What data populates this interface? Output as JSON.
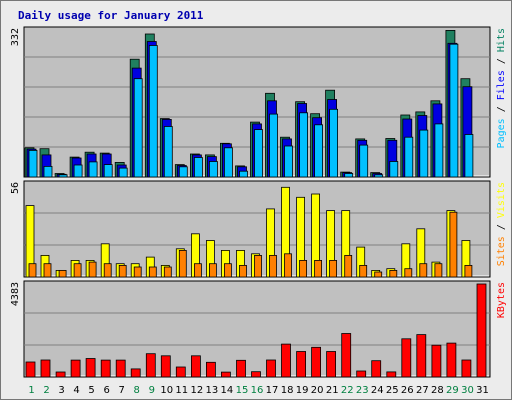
{
  "chart_data": {
    "type": "bar",
    "title": "Daily usage for January 2011",
    "x": [
      "1",
      "2",
      "3",
      "4",
      "5",
      "6",
      "7",
      "8",
      "9",
      "10",
      "11",
      "12",
      "13",
      "14",
      "15",
      "16",
      "17",
      "18",
      "19",
      "20",
      "21",
      "22",
      "23",
      "24",
      "25",
      "26",
      "27",
      "28",
      "29",
      "30",
      "31"
    ],
    "weekend_days": [
      "1",
      "2",
      "8",
      "9",
      "15",
      "16",
      "22",
      "23",
      "29",
      "30"
    ],
    "panels": [
      {
        "ymax_label": "332",
        "ymax": 332,
        "side_label": [
          {
            "text": "Pages",
            "color": "#00c0ff"
          },
          {
            "text": " / ",
            "color": "#000000"
          },
          {
            "text": "Files",
            "color": "#0000ff"
          },
          {
            "text": " / ",
            "color": "#000000"
          },
          {
            "text": "Hits",
            "color": "#008060"
          }
        ],
        "series": [
          {
            "name": "Hits",
            "color": "#208060",
            "values": [
              66,
              64,
              8,
              45,
              56,
              54,
              33,
              266,
              323,
              132,
              28,
              52,
              50,
              76,
              25,
              124,
              189,
              90,
              170,
              143,
              196,
              11,
              86,
              10,
              87,
              140,
              147,
              172,
              331,
              222,
              0
            ]
          },
          {
            "name": "Files",
            "color": "#0000e0",
            "values": [
              63,
              50,
              6,
              43,
              52,
              52,
              27,
              246,
              306,
              130,
              26,
              50,
              46,
              75,
              23,
              120,
              172,
              86,
              166,
              134,
              175,
              10,
              83,
              8,
              83,
              131,
              139,
              165,
              302,
              204,
              0
            ]
          },
          {
            "name": "Pages",
            "color": "#00c0ff",
            "values": [
              60,
              24,
              5,
              27,
              34,
              28,
              20,
              222,
              297,
              114,
              23,
              44,
              35,
              66,
              13,
              107,
              142,
              70,
              145,
              118,
              153,
              8,
              72,
              5,
              35,
              90,
              106,
              120,
              300,
              96,
              0
            ]
          }
        ]
      },
      {
        "ymax_label": "56",
        "ymax": 56,
        "side_label": [
          {
            "text": "Sites",
            "color": "#ff8000"
          },
          {
            "text": " / ",
            "color": "#000000"
          },
          {
            "text": "Visits",
            "color": "#ffff00"
          }
        ],
        "series": [
          {
            "name": "Visits",
            "color": "#ffff00",
            "values": [
              43,
              13,
              4,
              10,
              10,
              20,
              8,
              8,
              12,
              7,
              17,
              26,
              22,
              16,
              16,
              14,
              41,
              54,
              48,
              50,
              40,
              40,
              18,
              4,
              5,
              20,
              29,
              9,
              40,
              22,
              0
            ]
          },
          {
            "name": "Sites",
            "color": "#ff8000",
            "values": [
              8,
              8,
              4,
              8,
              9,
              8,
              7,
              6,
              6,
              6,
              16,
              8,
              8,
              8,
              7,
              13,
              13,
              14,
              10,
              10,
              10,
              13,
              7,
              3,
              4,
              5,
              8,
              8,
              39,
              7,
              0
            ]
          }
        ]
      },
      {
        "ymax_label": "4383",
        "ymax": 4383,
        "side_label": [
          {
            "text": "KBytes",
            "color": "#ff0000"
          }
        ],
        "series": [
          {
            "name": "KBytes",
            "color": "#ff0000",
            "values": [
              709,
              800,
              236,
              797,
              871,
              796,
              796,
              381,
              1100,
              1000,
              470,
              1000,
              693,
              232,
              789,
              250,
              800,
              1550,
              1200,
              1400,
              1200,
              2050,
              285,
              769,
              241,
              1800,
              2000,
              1500,
              1600,
              800,
              4383
            ]
          }
        ]
      }
    ],
    "colors": {
      "plot_bg": "#c0c0c0",
      "grid": "#808080",
      "weekday_label": "#008040",
      "weekday_text": "#000000"
    }
  }
}
